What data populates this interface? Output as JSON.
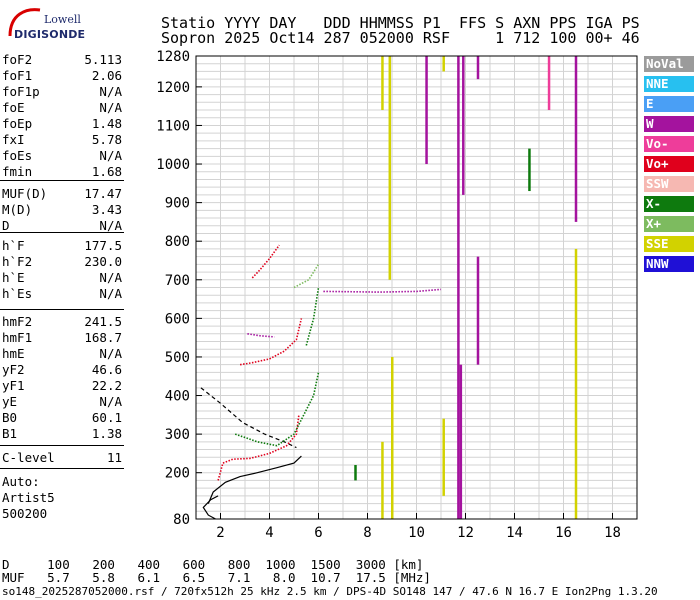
{
  "logo": {
    "line1": "Lowell",
    "line2": "DIGISONDE"
  },
  "header": {
    "line1": "Statio YYYY DAY   DDD HHMMSS P1  FFS S AXN PPS IGA PS",
    "line2": "Sopron 2025 Oct14 287 052000 RSF     1 712 100 00+ 46"
  },
  "params": [
    {
      "name": "foF2",
      "value": "5.113"
    },
    {
      "name": "foF1",
      "value": "2.06"
    },
    {
      "name": "foF1p",
      "value": "N/A"
    },
    {
      "name": "foE",
      "value": "N/A"
    },
    {
      "name": "foEp",
      "value": "1.48"
    },
    {
      "name": "fxI",
      "value": "5.78"
    },
    {
      "name": "foEs",
      "value": "N/A"
    },
    {
      "name": "fmin",
      "value": "1.68"
    },
    {
      "name": "MUF(D)",
      "value": "17.47"
    },
    {
      "name": "M(D)",
      "value": "3.43"
    },
    {
      "name": "D",
      "value": "N/A"
    },
    {
      "name": "h`F",
      "value": "177.5"
    },
    {
      "name": "h`F2",
      "value": "230.0"
    },
    {
      "name": "h`E",
      "value": "N/A"
    },
    {
      "name": "h`Es",
      "value": "N/A"
    },
    {
      "name": "hmF2",
      "value": "241.5"
    },
    {
      "name": "hmF1",
      "value": "168.7"
    },
    {
      "name": "hmE",
      "value": "N/A"
    },
    {
      "name": "yF2",
      "value": "46.6"
    },
    {
      "name": "yF1",
      "value": "22.2"
    },
    {
      "name": "yE",
      "value": "N/A"
    },
    {
      "name": "B0",
      "value": "60.1"
    },
    {
      "name": "B1",
      "value": "1.38"
    },
    {
      "name": "C-level",
      "value": "11"
    }
  ],
  "auto": {
    "label": "Auto:",
    "name": "Artist5",
    "time": "500200"
  },
  "legend": [
    {
      "label": "NoVal",
      "color": "#9b9b9b"
    },
    {
      "label": "NNE",
      "color": "#27c0f0"
    },
    {
      "label": "E",
      "color": "#4a9ff5"
    },
    {
      "label": "W",
      "color": "#a4139e"
    },
    {
      "label": "Vo-",
      "color": "#ee3d9a"
    },
    {
      "label": "Vo+",
      "color": "#e0001c"
    },
    {
      "label": "SSW",
      "color": "#f6b8b2"
    },
    {
      "label": "X-",
      "color": "#0e7a0e"
    },
    {
      "label": "X+",
      "color": "#7dbb5f"
    },
    {
      "label": "SSE",
      "color": "#d2d200"
    },
    {
      "label": "NNW",
      "color": "#1f10d6"
    }
  ],
  "muf_table": {
    "d_label": "D",
    "d_values": [
      "100",
      "200",
      "400",
      "600",
      "800",
      "1000",
      "1500",
      "3000"
    ],
    "d_unit": "[km]",
    "muf_label": "MUF",
    "muf_values": [
      "5.7",
      "5.8",
      "6.1",
      "6.5",
      "7.1",
      "8.0",
      "10.7",
      "17.5"
    ],
    "muf_unit": "[MHz]"
  },
  "footer": "so148_2025287052000.rsf / 720fx512h 25 kHz 2.5 km / DPS-4D SO148 147 / 47.6 N 16.7 E Ion2Png 1.3.20",
  "chart_data": {
    "type": "scatter",
    "xlim": [
      1.0,
      19.0
    ],
    "ylim": [
      80,
      1280
    ],
    "x_ticks": [
      2,
      4,
      6,
      8,
      10,
      12,
      14,
      16,
      18
    ],
    "y_ticks": [
      80,
      200,
      300,
      400,
      500,
      600,
      700,
      800,
      900,
      1000,
      1100,
      1200,
      1280
    ],
    "grid": true,
    "legend_position": "right",
    "vertical_bands": [
      {
        "x": 8.6,
        "y0": 1140,
        "y1": 1280,
        "color": "#d2d200"
      },
      {
        "x": 8.9,
        "y0": 700,
        "y1": 1280,
        "color": "#d2d200"
      },
      {
        "x": 9.0,
        "y0": 80,
        "y1": 500,
        "color": "#d2d200"
      },
      {
        "x": 8.6,
        "y0": 80,
        "y1": 280,
        "color": "#d2d200"
      },
      {
        "x": 11.1,
        "y0": 140,
        "y1": 340,
        "color": "#d2d200"
      },
      {
        "x": 11.7,
        "y0": 80,
        "y1": 1280,
        "color": "#a4139e"
      },
      {
        "x": 11.9,
        "y0": 920,
        "y1": 1280,
        "color": "#a4139e"
      },
      {
        "x": 11.8,
        "y0": 80,
        "y1": 480,
        "color": "#a4139e"
      },
      {
        "x": 12.5,
        "y0": 480,
        "y1": 760,
        "color": "#a4139e"
      },
      {
        "x": 12.5,
        "y0": 1220,
        "y1": 1280,
        "color": "#a4139e"
      },
      {
        "x": 10.4,
        "y0": 1000,
        "y1": 1280,
        "color": "#a4139e"
      },
      {
        "x": 16.5,
        "y0": 80,
        "y1": 780,
        "color": "#d2d200"
      },
      {
        "x": 16.5,
        "y0": 850,
        "y1": 1280,
        "color": "#a4139e"
      },
      {
        "x": 15.4,
        "y0": 1140,
        "y1": 1280,
        "color": "#ee3d9a"
      },
      {
        "x": 14.6,
        "y0": 930,
        "y1": 1040,
        "color": "#0e7a0e"
      },
      {
        "x": 7.5,
        "y0": 180,
        "y1": 220,
        "color": "#0e7a0e"
      },
      {
        "x": 11.1,
        "y0": 1240,
        "y1": 1280,
        "color": "#d2d200"
      }
    ],
    "traces": [
      {
        "color": "#000000",
        "dash": false,
        "points": [
          [
            1.5,
            120
          ],
          [
            1.7,
            150
          ],
          [
            2.2,
            175
          ],
          [
            2.8,
            190
          ],
          [
            3.5,
            200
          ],
          [
            4.3,
            213
          ],
          [
            5.0,
            225
          ],
          [
            5.3,
            243
          ]
        ]
      },
      {
        "color": "#000000",
        "dash": false,
        "points": [
          [
            1.8,
            80
          ],
          [
            1.5,
            90
          ],
          [
            1.3,
            110
          ],
          [
            1.6,
            130
          ],
          [
            1.9,
            140
          ]
        ]
      },
      {
        "color": "#000000",
        "dash": true,
        "points": [
          [
            1.2,
            420
          ],
          [
            2.0,
            380
          ],
          [
            2.9,
            330
          ],
          [
            3.8,
            300
          ],
          [
            4.6,
            280
          ],
          [
            5.1,
            265
          ]
        ]
      },
      {
        "color": "#e0001c",
        "dash": false,
        "points": [
          [
            1.9,
            180
          ],
          [
            2.1,
            225
          ],
          [
            2.5,
            235
          ],
          [
            3.2,
            237
          ],
          [
            4.0,
            250
          ],
          [
            4.7,
            270
          ],
          [
            5.1,
            300
          ],
          [
            5.2,
            350
          ]
        ]
      },
      {
        "color": "#0e7a0e",
        "dash": false,
        "points": [
          [
            2.6,
            300
          ],
          [
            3.5,
            280
          ],
          [
            4.3,
            270
          ],
          [
            5.0,
            300
          ],
          [
            5.4,
            350
          ],
          [
            5.8,
            400
          ],
          [
            6.0,
            460
          ]
        ]
      },
      {
        "color": "#e0001c",
        "dash": false,
        "points": [
          [
            2.8,
            480
          ],
          [
            3.3,
            485
          ],
          [
            4.0,
            495
          ],
          [
            4.6,
            515
          ],
          [
            5.1,
            545
          ],
          [
            5.3,
            600
          ]
        ]
      },
      {
        "color": "#e0001c",
        "dash": false,
        "points": [
          [
            3.3,
            705
          ],
          [
            3.6,
            725
          ],
          [
            4.0,
            755
          ],
          [
            4.4,
            790
          ]
        ]
      },
      {
        "color": "#a4139e",
        "dash": false,
        "points": [
          [
            3.1,
            560
          ],
          [
            3.6,
            555
          ],
          [
            4.2,
            552
          ]
        ]
      },
      {
        "color": "#a4139e",
        "dash": false,
        "points": [
          [
            6.2,
            670
          ],
          [
            8.5,
            668
          ],
          [
            10.0,
            670
          ],
          [
            11.0,
            675
          ]
        ]
      },
      {
        "color": "#7dbb5f",
        "dash": false,
        "points": [
          [
            5.0,
            680
          ],
          [
            5.6,
            700
          ],
          [
            6.0,
            740
          ]
        ]
      },
      {
        "color": "#0e7a0e",
        "dash": false,
        "points": [
          [
            5.5,
            530
          ],
          [
            5.8,
            600
          ],
          [
            6.0,
            680
          ]
        ]
      }
    ]
  }
}
